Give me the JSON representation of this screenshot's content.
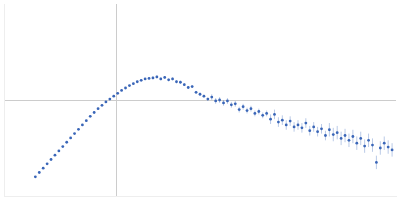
{
  "chart_data": {
    "type": "scatter",
    "color": "#3a66b8",
    "marker": "circle",
    "grid": true,
    "tick_labels": false,
    "xlim": [
      0,
      400
    ],
    "ylim": [
      0,
      200
    ],
    "xticks": [
      115
    ],
    "yticks": [
      100
    ],
    "x": [
      32,
      36,
      40,
      44,
      48,
      52,
      56,
      60,
      64,
      68,
      72,
      76,
      80,
      84,
      88,
      92,
      96,
      100,
      104,
      108,
      112,
      116,
      120,
      124,
      128,
      132,
      136,
      140,
      144,
      148,
      152,
      156,
      160,
      164,
      168,
      172,
      176,
      180,
      184,
      188,
      192,
      196,
      200,
      204,
      208,
      212,
      216,
      220,
      224,
      228,
      232,
      236,
      240,
      244,
      248,
      252,
      256,
      260,
      264,
      268,
      272,
      276,
      280,
      284,
      288,
      292,
      296,
      300,
      304,
      308,
      312,
      316,
      320,
      324,
      328,
      332,
      336,
      340,
      344,
      348,
      352,
      356,
      360,
      364,
      368,
      372,
      376,
      380,
      384,
      388,
      392,
      396
    ],
    "values": [
      20,
      24.5,
      29,
      33.5,
      38,
      42.5,
      47,
      51.5,
      56,
      60.5,
      65,
      69.5,
      74,
      78.5,
      83,
      87,
      91,
      94.5,
      98,
      101,
      104,
      107,
      110,
      112.5,
      115,
      117,
      119,
      120.5,
      122,
      122.5,
      123,
      124,
      122,
      123.5,
      121,
      122,
      119,
      118.5,
      116,
      113,
      114,
      108,
      106,
      104,
      101,
      103,
      99,
      100,
      97,
      99,
      95,
      96,
      90,
      93,
      89,
      91,
      86,
      88,
      84,
      86,
      80,
      85,
      77,
      79,
      74,
      78,
      72,
      74,
      71,
      76,
      68,
      72,
      67,
      70,
      63,
      69,
      64,
      66,
      60,
      63,
      58,
      62,
      55,
      60,
      52,
      58,
      53,
      35,
      50,
      55,
      51,
      48
    ],
    "errors": [
      0.5,
      0.5,
      0.5,
      0.5,
      0.5,
      0.5,
      0.5,
      0.5,
      0.5,
      0.5,
      0.5,
      0.5,
      0.5,
      0.5,
      0.5,
      0.5,
      0.5,
      0.5,
      0.5,
      0.5,
      0.5,
      0.5,
      0.5,
      0.5,
      0.5,
      0.5,
      0.5,
      0.5,
      0.5,
      0.5,
      1.5,
      1.5,
      1.5,
      1.5,
      1.5,
      1.5,
      1.5,
      1.5,
      1.5,
      1.5,
      1.5,
      1.5,
      1.5,
      1.5,
      1.5,
      3,
      3,
      3,
      3,
      3,
      3,
      3,
      3,
      3,
      3,
      3,
      3,
      3,
      3,
      3,
      5,
      5,
      5,
      5,
      5,
      5,
      5,
      5,
      5,
      5,
      5,
      5,
      5,
      5,
      5,
      7,
      7,
      7,
      7,
      7,
      7,
      7,
      7,
      7,
      7,
      7,
      7,
      7,
      7,
      7,
      7,
      7
    ]
  }
}
